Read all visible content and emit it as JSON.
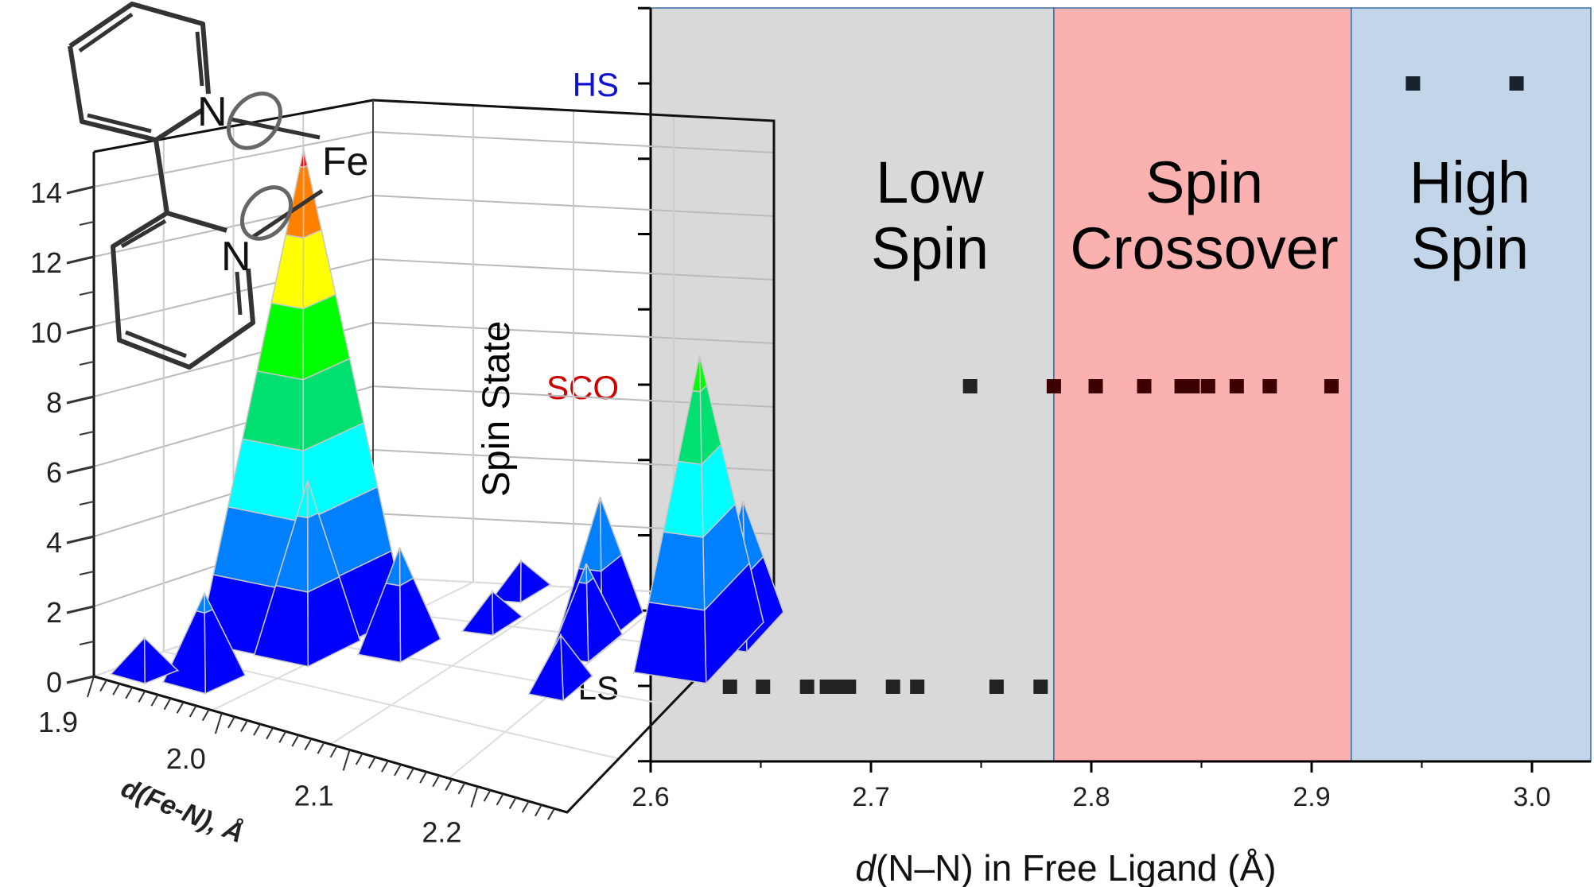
{
  "chart_data": [
    {
      "type": "scatter",
      "title": "",
      "xlabel_italic": "d",
      "xlabel_rest": "(N–N) in Free Ligand (Å)",
      "xlim": [
        2.6,
        3.03
      ],
      "x_ticks": [
        "2.6",
        "2.7",
        "2.8",
        "2.9",
        "3.0"
      ],
      "x_tick_values": [
        2.6,
        2.7,
        2.8,
        2.9,
        3.0
      ],
      "y_categories": [
        {
          "label": "HS",
          "color": "#1010d0"
        },
        {
          "label": "SCO",
          "color": "#d00000"
        },
        {
          "label": "LS",
          "color": "#111111"
        }
      ],
      "regions": [
        {
          "label_line1": "Low",
          "label_line2": "Spin",
          "from": 2.6,
          "to": 2.783,
          "color": "#d9d9d9"
        },
        {
          "label_line1": "Spin",
          "label_line2": "Crossover",
          "from": 2.783,
          "to": 2.918,
          "color": "#fcb1b1"
        },
        {
          "label_line1": "High",
          "label_line2": "Spin",
          "from": 2.918,
          "to": 3.03,
          "color": "#c2d5e9"
        }
      ],
      "series": [
        {
          "name": "LS",
          "x": [
            2.636,
            2.651,
            2.671,
            2.68,
            2.684,
            2.69,
            2.71,
            2.721,
            2.757,
            2.777
          ]
        },
        {
          "name": "SCO",
          "x": [
            2.745,
            2.783,
            2.802,
            2.824,
            2.841,
            2.846,
            2.853,
            2.866,
            2.881,
            2.909
          ]
        },
        {
          "name": "HS",
          "x": [
            2.946,
            2.993
          ]
        }
      ]
    },
    {
      "type": "surface3d",
      "xlabel": "d(Fe-N), Å",
      "depth_label": "Spin State",
      "z_ticks": [
        "0",
        "2",
        "4",
        "6",
        "8",
        "10",
        "12",
        "14"
      ],
      "z_tick_values": [
        0,
        2,
        4,
        6,
        8,
        10,
        12,
        14
      ],
      "x_ticks": [
        "1.9",
        "2.0",
        "2.1",
        "2.2"
      ],
      "x_tick_values": [
        1.9,
        2.0,
        2.1,
        2.2
      ],
      "xlim": [
        1.9,
        2.27
      ],
      "zlim": [
        0,
        15
      ],
      "color_bands": [
        "#0000ff",
        "#0080ff",
        "#00ffff",
        "#00e070",
        "#00ff00",
        "#ffff00",
        "#ff8000",
        "#ff0000"
      ],
      "peaks": [
        {
          "fe_n": 1.918,
          "depth": 0.1,
          "count": 1
        },
        {
          "fe_n": 1.955,
          "depth": 0.15,
          "count": 2.5
        },
        {
          "fe_n": 1.974,
          "depth": 0.45,
          "count": 5
        },
        {
          "fe_n": 1.948,
          "depth": 0.55,
          "count": 14.5
        },
        {
          "fe_n": 2.03,
          "depth": 0.55,
          "count": 3
        },
        {
          "fe_n": 2.067,
          "depth": 0.75,
          "count": 1
        },
        {
          "fe_n": 2.048,
          "depth": 0.95,
          "count": 1
        },
        {
          "fe_n": 2.177,
          "depth": 0.5,
          "count": 1.5
        },
        {
          "fe_n": 2.16,
          "depth": 0.7,
          "count": 2.5
        },
        {
          "fe_n": 2.152,
          "depth": 0.8,
          "count": 4
        },
        {
          "fe_n": 2.25,
          "depth": 0.75,
          "count": 9
        },
        {
          "fe_n": 2.27,
          "depth": 0.85,
          "count": 4
        }
      ]
    }
  ],
  "molecule": {
    "atom_n1": "N",
    "atom_n2": "N",
    "atom_fe": "Fe"
  }
}
